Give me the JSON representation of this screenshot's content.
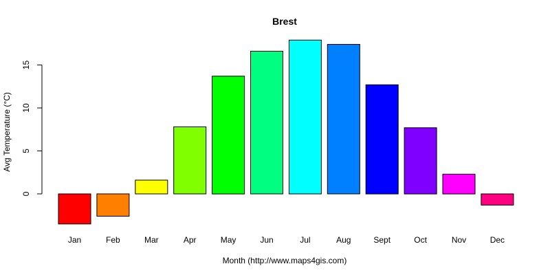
{
  "chart_data": {
    "type": "bar",
    "title": "Brest",
    "xlabel": "Month (http://www.maps4gis.com)",
    "ylabel": "Avg Temperature (°C)",
    "categories": [
      "Jan",
      "Feb",
      "Mar",
      "Apr",
      "May",
      "Jun",
      "Jul",
      "Aug",
      "Sept",
      "Oct",
      "Nov",
      "Dec"
    ],
    "values": [
      -3.5,
      -2.6,
      1.6,
      7.8,
      13.7,
      16.6,
      17.9,
      17.4,
      12.7,
      7.7,
      2.3,
      -1.3
    ],
    "colors": [
      "#FF0000",
      "#FF8000",
      "#FFFF00",
      "#80FF00",
      "#00FF00",
      "#00FF80",
      "#00FFFF",
      "#0080FF",
      "#0000FF",
      "#8000FF",
      "#FF00FF",
      "#FF0080"
    ],
    "yticks": [
      0,
      5,
      10,
      15
    ],
    "ylim": [
      -3.5,
      17.9
    ],
    "grid": false,
    "legend": "none"
  }
}
